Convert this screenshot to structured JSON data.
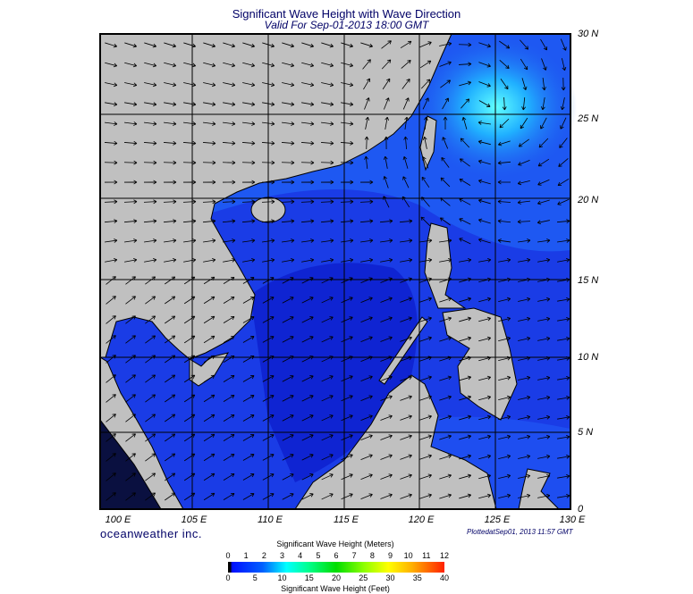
{
  "title": "Significant Wave Height with Wave Direction",
  "subtitle": "Valid For Sep-01-2013 18:00 GMT",
  "lon_labels": [
    "100 E",
    "105 E",
    "110 E",
    "115 E",
    "120 E",
    "125 E",
    "130 E"
  ],
  "lat_labels": [
    "30 N",
    "25 N",
    "20 N",
    "15 N",
    "10 N",
    "5 N",
    "0"
  ],
  "brand": "oceanweather inc.",
  "plotted": "PlottedatSep01, 2013 11:57 GMT",
  "colorbar": {
    "title_top": "Significant Wave Height (Meters)",
    "title_bottom": "Significant Wave Height (Feet)",
    "meters": [
      "0",
      "1",
      "2",
      "3",
      "4",
      "5",
      "6",
      "7",
      "8",
      "9",
      "10",
      "11",
      "12"
    ],
    "feet": [
      "0",
      "5",
      "10",
      "15",
      "20",
      "25",
      "30",
      "35",
      "40"
    ]
  },
  "colors": {
    "land": "#c0c0c0",
    "ocean_low": "#1030d8",
    "ocean_mid": "#2050f0",
    "ocean_high": "#30d0ff"
  },
  "map_extent": {
    "lon": [
      99,
      130
    ],
    "lat": [
      0,
      30
    ]
  }
}
